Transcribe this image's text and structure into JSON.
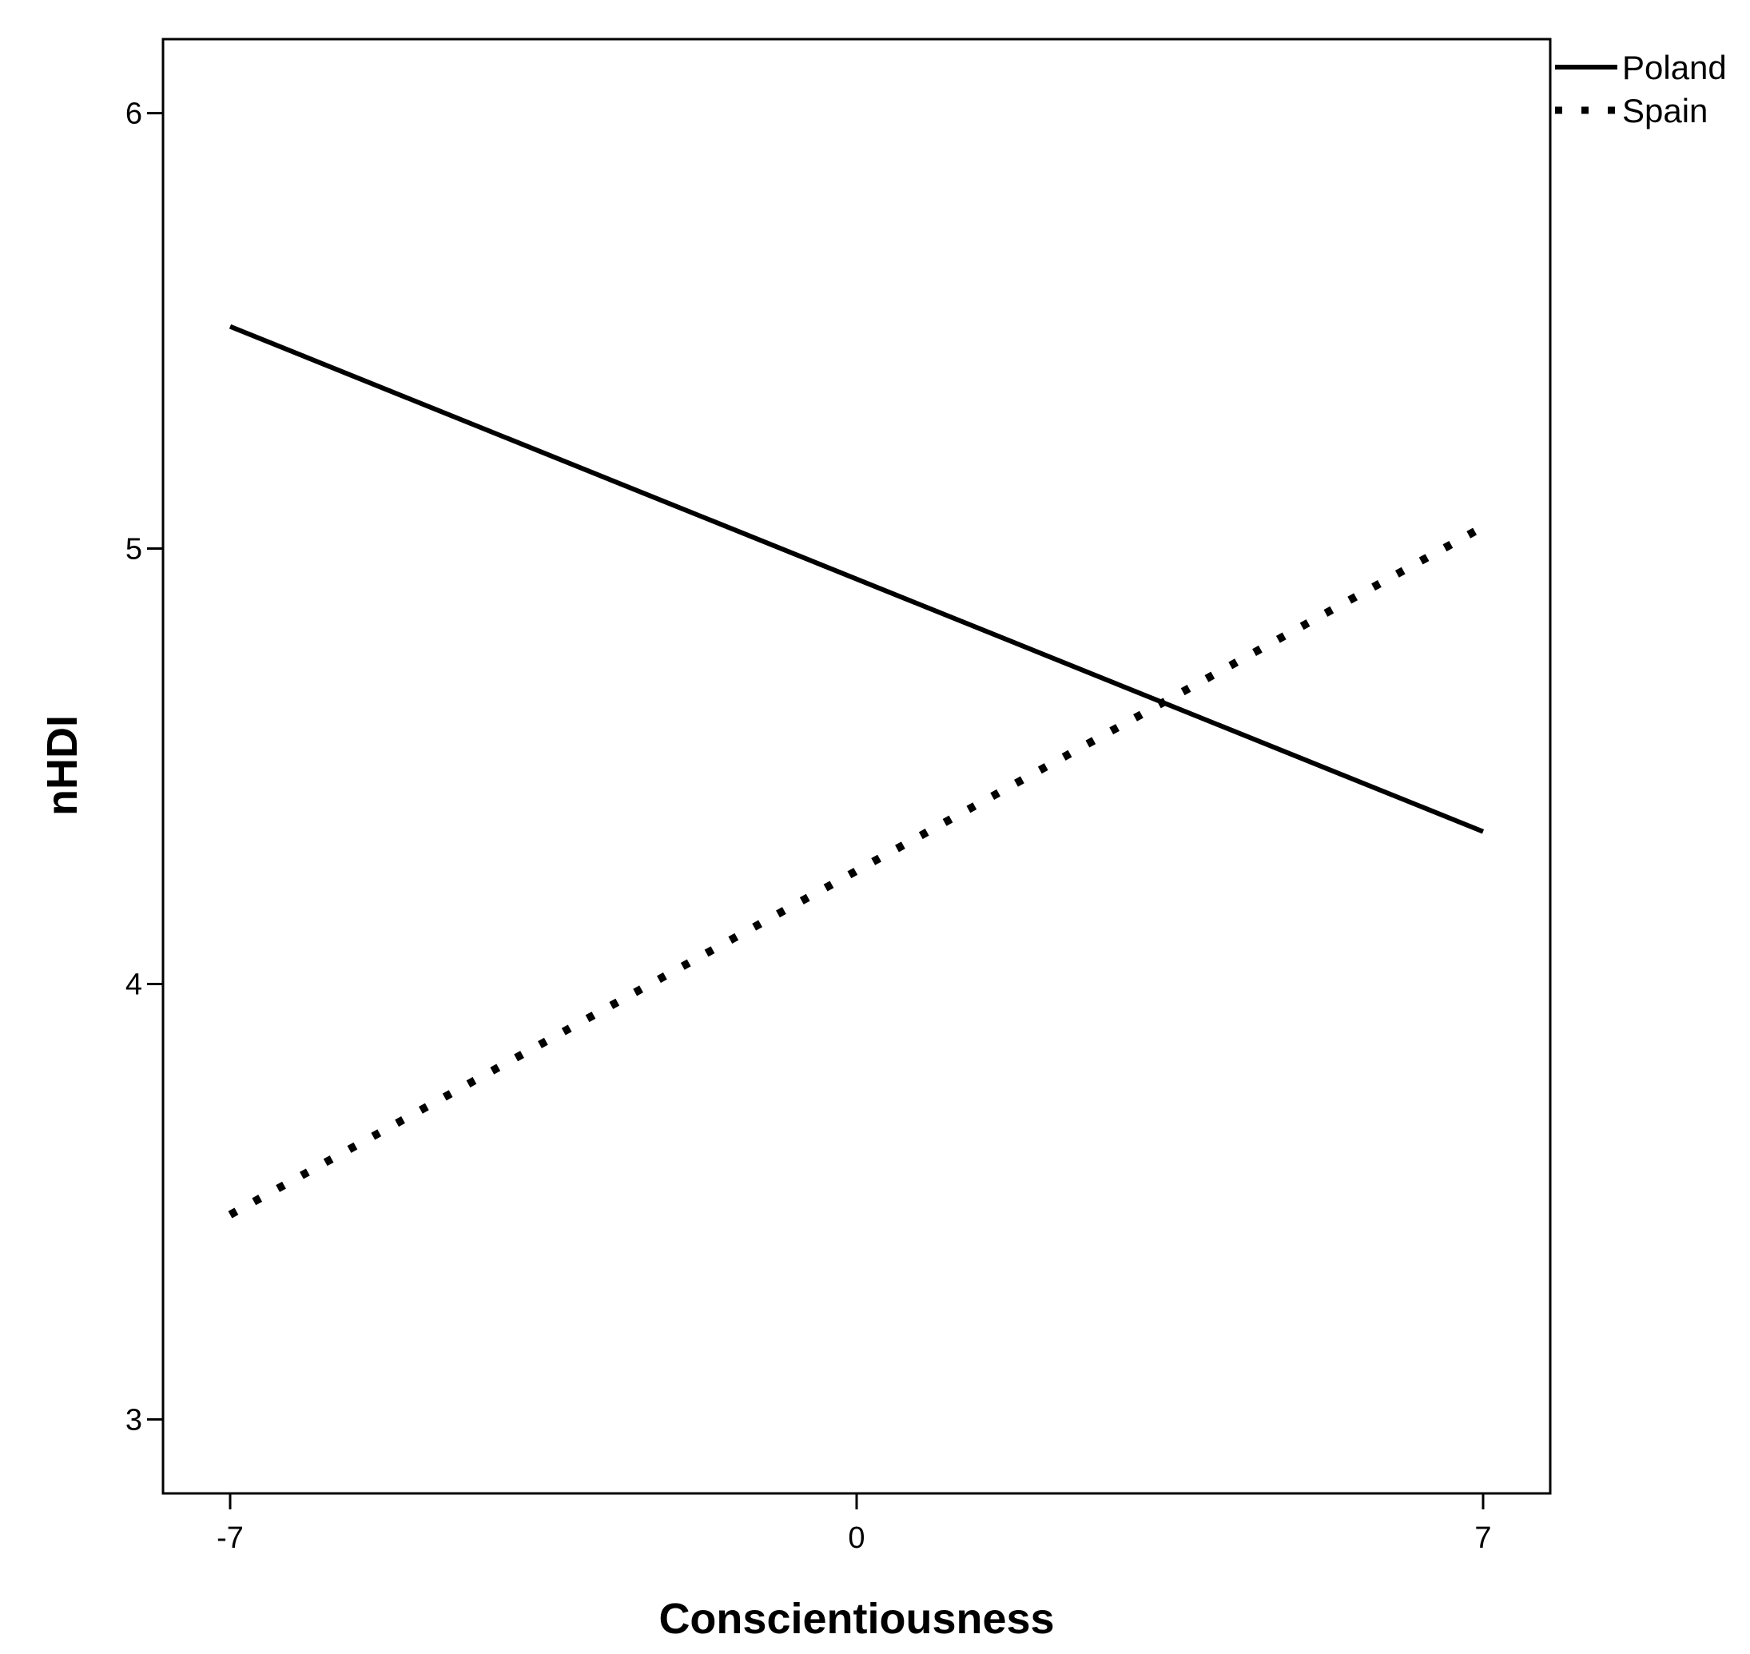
{
  "chart_data": {
    "type": "line",
    "title": "",
    "xlabel": "Conscientiousness",
    "ylabel": "nHDI",
    "x_ticks": [
      "-7",
      "0",
      "7"
    ],
    "y_ticks": [
      "3",
      "4",
      "5",
      "6"
    ],
    "xlim": [
      -7.75,
      7.75
    ],
    "ylim": [
      2.83,
      6.17
    ],
    "grid": false,
    "legend_position": "top-right outside",
    "series": [
      {
        "name": "Poland",
        "style": "solid",
        "color": "#000000",
        "x": [
          -7,
          7
        ],
        "y": [
          5.51,
          4.35
        ]
      },
      {
        "name": "Spain",
        "style": "dotted",
        "color": "#000000",
        "x": [
          -7,
          7
        ],
        "y": [
          3.47,
          5.05
        ]
      }
    ]
  }
}
